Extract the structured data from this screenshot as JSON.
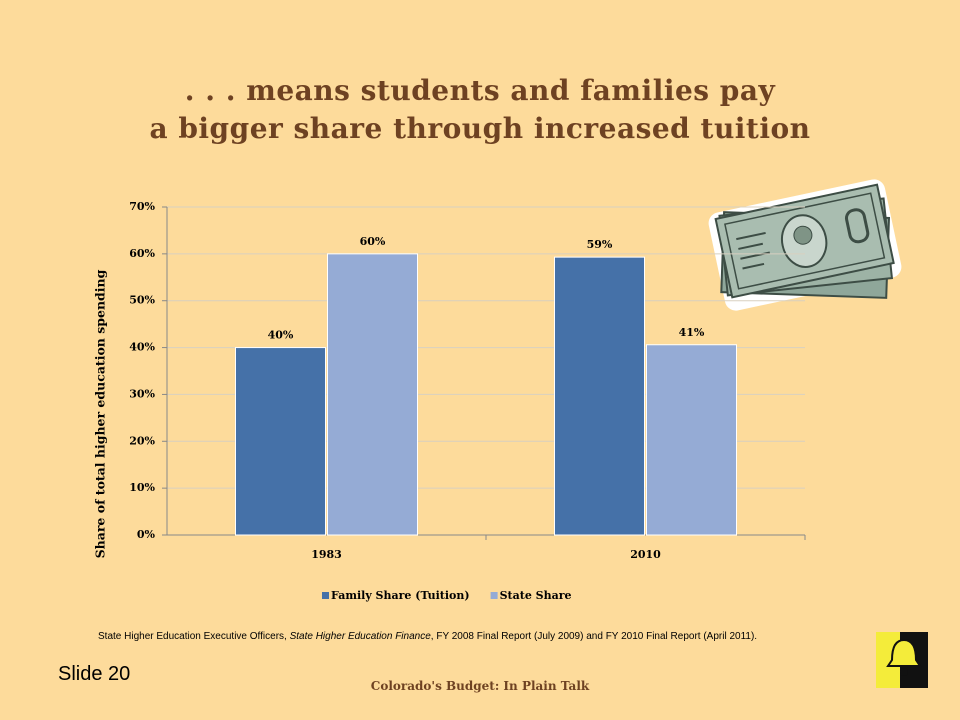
{
  "chart_data": {
    "type": "bar",
    "title": [
      ". . . means students and families pay",
      "a bigger share through increased tuition"
    ],
    "y_label": "Share of total higher education spending",
    "categories": [
      "1983",
      "2010"
    ],
    "series": [
      {
        "name": "Family Share (Tuition)",
        "color": "#4571a8",
        "values": [
          40,
          59.3
        ],
        "value_labels": [
          "40%",
          "59%"
        ]
      },
      {
        "name": "State Share",
        "color": "#95abd5",
        "values": [
          60,
          40.6
        ],
        "value_labels": [
          "60%",
          "41%"
        ]
      }
    ],
    "ylim": [
      0,
      70
    ],
    "yticks": [
      {
        "value": 0,
        "label": "0%"
      },
      {
        "value": 10,
        "label": "10%"
      },
      {
        "value": 20,
        "label": "20%"
      },
      {
        "value": 30,
        "label": "30%"
      },
      {
        "value": 40,
        "label": "40%"
      },
      {
        "value": 50,
        "label": "50%"
      },
      {
        "value": 60,
        "label": "60%"
      },
      {
        "value": 70,
        "label": "70%"
      }
    ],
    "grid": true,
    "legend": "bottom"
  },
  "source": [
    "State Higher Education Executive Officers, ",
    "State Higher Education Finance",
    ", FY 2008 Final Report (July 2009) and FY 2010 Final Report (April 2011)."
  ],
  "slide_number": "Slide 20",
  "footer": "Colorado's Budget: In Plain Talk"
}
